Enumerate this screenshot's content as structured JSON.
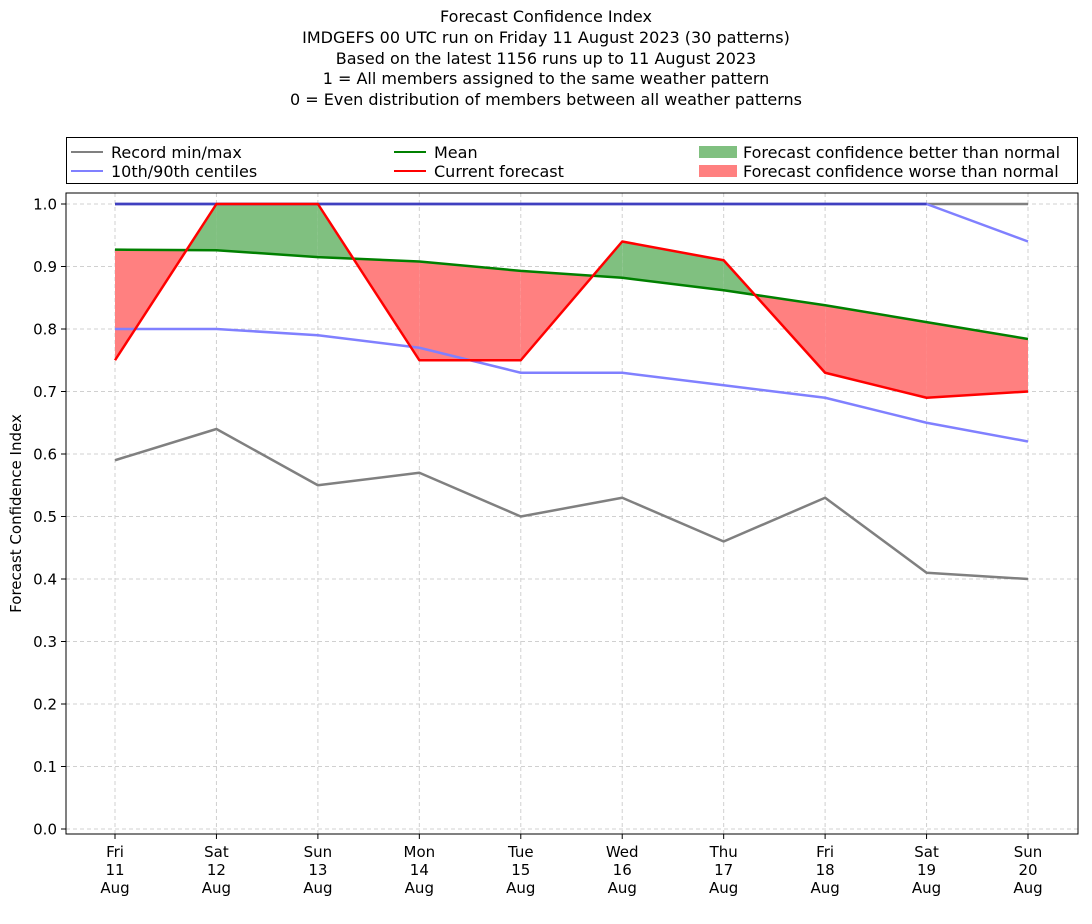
{
  "title_lines": [
    "Forecast Confidence Index",
    "IMDGEFS 00 UTC run on Friday 11 August 2023 (30 patterns)",
    "Based on the latest 1156 runs up to 11 August 2023",
    "1 = All members assigned to the same weather pattern",
    "0 = Even distribution of members between all weather patterns"
  ],
  "legend": {
    "record": "Record min/max",
    "centiles": "10th/90th centiles",
    "mean": "Mean",
    "current": "Current forecast",
    "better": "Forecast confidence better than normal",
    "worse": "Forecast confidence worse than normal"
  },
  "colors": {
    "record": "#808080",
    "centiles": "#8080ff",
    "centile_top": "#4040c0",
    "mean": "#008000",
    "current": "#ff0000",
    "better_fill": "#80c080",
    "worse_fill": "#ff8080",
    "grid": "#d0d0d0"
  },
  "chart_data": {
    "type": "line",
    "ylabel": "Forecast Confidence Index",
    "ylim": [
      0,
      1
    ],
    "yticks": [
      "0.0",
      "0.1",
      "0.2",
      "0.3",
      "0.4",
      "0.5",
      "0.6",
      "0.7",
      "0.8",
      "0.9",
      "1.0"
    ],
    "grid": true,
    "legend_position": "top",
    "x_labels": [
      [
        "Fri",
        "11",
        "Aug"
      ],
      [
        "Sat",
        "12",
        "Aug"
      ],
      [
        "Sun",
        "13",
        "Aug"
      ],
      [
        "Mon",
        "14",
        "Aug"
      ],
      [
        "Tue",
        "15",
        "Aug"
      ],
      [
        "Wed",
        "16",
        "Aug"
      ],
      [
        "Thu",
        "17",
        "Aug"
      ],
      [
        "Fri",
        "18",
        "Aug"
      ],
      [
        "Sat",
        "19",
        "Aug"
      ],
      [
        "Sun",
        "20",
        "Aug"
      ]
    ],
    "series": [
      {
        "name": "Record min/max",
        "key": "record_max",
        "values": [
          1.0,
          1.0,
          1.0,
          1.0,
          1.0,
          1.0,
          1.0,
          1.0,
          1.0,
          1.0
        ]
      },
      {
        "name": "Record min/max",
        "key": "record_min",
        "values": [
          0.59,
          0.64,
          0.55,
          0.57,
          0.5,
          0.53,
          0.46,
          0.53,
          0.41,
          0.4
        ]
      },
      {
        "name": "10th/90th centiles",
        "key": "p90",
        "values": [
          1.0,
          1.0,
          1.0,
          1.0,
          1.0,
          1.0,
          1.0,
          1.0,
          1.0,
          0.94
        ]
      },
      {
        "name": "10th/90th centiles",
        "key": "p10",
        "values": [
          0.8,
          0.8,
          0.79,
          0.77,
          0.73,
          0.73,
          0.71,
          0.69,
          0.65,
          0.62
        ]
      },
      {
        "name": "Mean",
        "key": "mean",
        "values": [
          0.927,
          0.926,
          0.915,
          0.908,
          0.893,
          0.882,
          0.862,
          0.838,
          0.811,
          0.784
        ]
      },
      {
        "name": "Current forecast",
        "key": "current",
        "values": [
          0.75,
          1.0,
          1.0,
          0.75,
          0.75,
          0.94,
          0.91,
          0.73,
          0.69,
          0.7
        ]
      }
    ]
  }
}
